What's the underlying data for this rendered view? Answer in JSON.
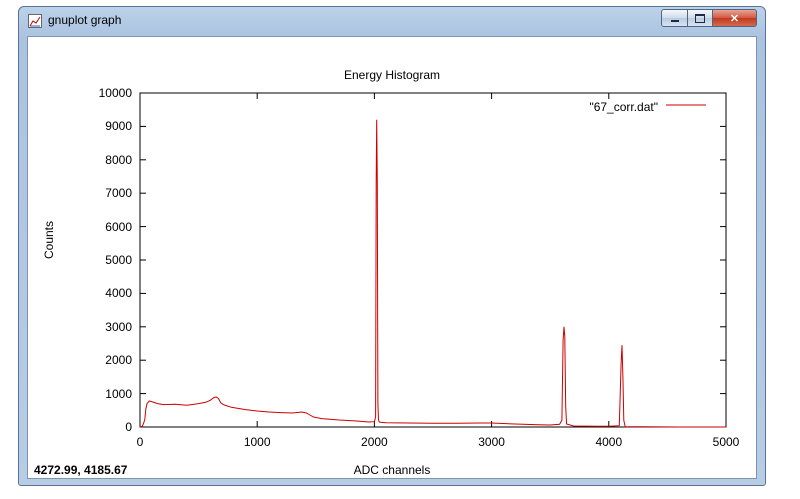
{
  "window": {
    "title": "gnuplot graph",
    "icon": "gnuplot-graph-icon",
    "buttons": {
      "minimize": "minimize-icon",
      "maximize": "maximize-icon",
      "close": "close-icon"
    }
  },
  "status": {
    "coords": "4272.99,  4185.67"
  },
  "colors": {
    "series": "#cc0000",
    "axis": "#000000"
  },
  "chart_data": {
    "type": "line",
    "title": "Energy Histogram",
    "xlabel": "ADC channels",
    "ylabel": "Counts",
    "xlim": [
      0,
      5000
    ],
    "ylim": [
      0,
      10000
    ],
    "xticks": [
      0,
      1000,
      2000,
      3000,
      4000,
      5000
    ],
    "yticks": [
      0,
      1000,
      2000,
      3000,
      4000,
      5000,
      6000,
      7000,
      8000,
      9000,
      10000
    ],
    "grid": false,
    "legend_position": "top-right",
    "series": [
      {
        "name": "\"67_corr.dat\"",
        "x": [
          0,
          20,
          40,
          50,
          60,
          80,
          100,
          150,
          200,
          300,
          400,
          500,
          560,
          600,
          630,
          650,
          670,
          690,
          720,
          780,
          900,
          1000,
          1100,
          1200,
          1300,
          1380,
          1420,
          1450,
          1480,
          1550,
          1700,
          1850,
          1950,
          2000,
          2010,
          2015,
          2020,
          2025,
          2030,
          2035,
          2040,
          2050,
          2100,
          2300,
          2500,
          2700,
          2900,
          3000,
          3200,
          3400,
          3500,
          3580,
          3600,
          3610,
          3618,
          3625,
          3632,
          3640,
          3700,
          3900,
          4000,
          4090,
          4105,
          4113,
          4120,
          4128,
          4140,
          4300,
          4600,
          5000
        ],
        "y": [
          0,
          20,
          200,
          550,
          700,
          780,
          760,
          700,
          670,
          680,
          650,
          700,
          740,
          800,
          880,
          900,
          850,
          720,
          660,
          590,
          520,
          480,
          450,
          430,
          420,
          450,
          420,
          360,
          300,
          250,
          210,
          180,
          150,
          160,
          300,
          7400,
          9200,
          7300,
          700,
          220,
          160,
          140,
          130,
          120,
          110,
          110,
          120,
          120,
          90,
          70,
          60,
          80,
          200,
          2600,
          3000,
          2700,
          600,
          90,
          30,
          20,
          20,
          40,
          1900,
          2450,
          1500,
          200,
          10,
          5,
          0,
          0
        ]
      }
    ]
  }
}
